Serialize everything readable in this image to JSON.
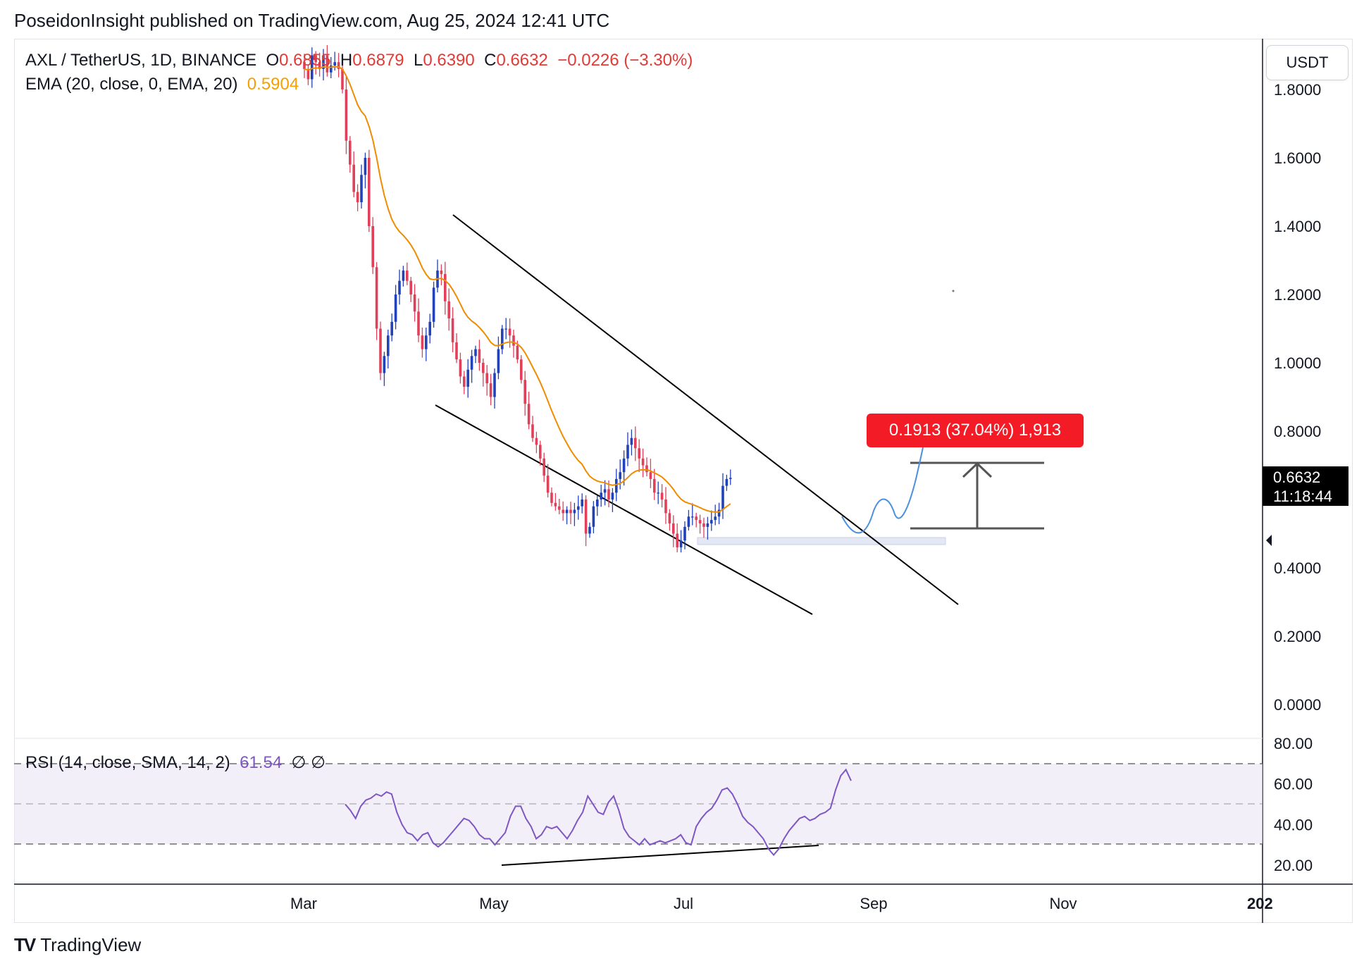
{
  "header": {
    "published": "PoseidonInsight published on TradingView.com, Aug 25, 2024 12:41 UTC"
  },
  "footer": {
    "brand": "TradingView",
    "logo": "tradingview-logo-icon"
  },
  "colors": {
    "up": "#2142b8",
    "down": "#e0405a",
    "ema": "#f08c00",
    "rsi": "#7e57c2",
    "price_tag_bg": "#000000",
    "measure_bg": "#f21b26",
    "projection": "#4a90e2"
  },
  "legend": {
    "symbol": "AXL / TetherUS, 1D, BINANCE",
    "o_label": "O",
    "o_value": "0.6855",
    "h_label": "H",
    "h_value": "0.6879",
    "l_label": "L",
    "l_value": "0.6390",
    "c_label": "C",
    "c_value": "0.6632",
    "change": "−0.0226 (−3.30%)",
    "ema_label": "EMA (20, close, 0, EMA, 20)",
    "ema_value": "0.5904",
    "rsi_label": "RSI (14, close, SMA, 14, 2)",
    "rsi_value": "61.54",
    "rsi_extra": "∅ ∅"
  },
  "currency_button": "USDT",
  "last_price": {
    "price": "0.6632",
    "countdown": "11:18:44"
  },
  "measure": {
    "label": "0.1913 (37.04%) 1,913"
  },
  "chart_data": {
    "type": "candlestick",
    "symbol": "AXL / TetherUS",
    "interval": "1D",
    "exchange": "BINANCE",
    "x_ticks": [
      "Mar",
      "May",
      "Jul",
      "Sep",
      "Nov",
      "202"
    ],
    "y_ticks": [
      "1.8000",
      "1.6000",
      "1.4000",
      "1.2000",
      "1.0000",
      "0.8000",
      "0.4000",
      "0.2000",
      "0.0000"
    ],
    "ylim": [
      0.0,
      1.8
    ],
    "approx_closes": [
      1.86,
      1.83,
      1.9,
      1.88,
      1.86,
      1.9,
      1.85,
      1.87,
      1.88,
      1.86,
      1.8,
      1.65,
      1.58,
      1.5,
      1.47,
      1.55,
      1.6,
      1.4,
      1.28,
      1.1,
      0.97,
      1.02,
      1.08,
      1.12,
      1.2,
      1.24,
      1.27,
      1.24,
      1.2,
      1.15,
      1.08,
      1.04,
      1.08,
      1.12,
      1.22,
      1.27,
      1.26,
      1.18,
      1.13,
      1.06,
      1.01,
      0.96,
      0.93,
      0.98,
      1.02,
      1.04,
      1.0,
      0.97,
      0.94,
      0.9,
      0.97,
      1.04,
      1.1,
      1.1,
      1.08,
      1.05,
      1.01,
      0.95,
      0.88,
      0.82,
      0.78,
      0.76,
      0.72,
      0.67,
      0.62,
      0.59,
      0.58,
      0.57,
      0.56,
      0.57,
      0.56,
      0.57,
      0.58,
      0.6,
      0.5,
      0.52,
      0.58,
      0.6,
      0.62,
      0.63,
      0.6,
      0.62,
      0.66,
      0.68,
      0.72,
      0.76,
      0.78,
      0.75,
      0.72,
      0.7,
      0.68,
      0.66,
      0.62,
      0.62,
      0.6,
      0.56,
      0.53,
      0.5,
      0.46,
      0.48,
      0.52,
      0.55,
      0.55,
      0.54,
      0.53,
      0.52,
      0.53,
      0.54,
      0.55,
      0.57,
      0.64,
      0.66,
      0.6632
    ],
    "ema_current": 0.5904,
    "last": {
      "open": 0.6855,
      "high": 0.6879,
      "low": 0.639,
      "close": 0.6632,
      "change": -0.0226,
      "change_pct": -3.3
    },
    "rsi": {
      "ylim": [
        20,
        80
      ],
      "y_ticks": [
        "80.00",
        "60.00",
        "40.00",
        "20.00"
      ],
      "levels": [
        30,
        50,
        70
      ],
      "current": 61.54,
      "approx_values": [
        50,
        47,
        43,
        49,
        52,
        53,
        55,
        54,
        56,
        55,
        46,
        40,
        36,
        35,
        32,
        35,
        36,
        31,
        29,
        31,
        34,
        37,
        40,
        43,
        42,
        39,
        35,
        33,
        33,
        30,
        33,
        36,
        44,
        49,
        49,
        43,
        39,
        33,
        35,
        39,
        38,
        39,
        36,
        33,
        37,
        42,
        46,
        54,
        50,
        46,
        45,
        51,
        54,
        47,
        38,
        34,
        32,
        30,
        33,
        30,
        31,
        32,
        31,
        32,
        33,
        35,
        31,
        30,
        39,
        43,
        46,
        48,
        52,
        57,
        58,
        55,
        50,
        44,
        41,
        39,
        36,
        33,
        28,
        25,
        28,
        33,
        37,
        40,
        43,
        44,
        42,
        43,
        45,
        46,
        48,
        57,
        64,
        67,
        61.54
      ]
    },
    "annotations": {
      "channel_upper": "descending line from late April to mid September",
      "channel_lower": "descending line from early April to early August",
      "rsi_divergence": "rising trendline on RSI lows (bullish divergence)",
      "target_move": "0.1913 (37.04%)"
    }
  }
}
